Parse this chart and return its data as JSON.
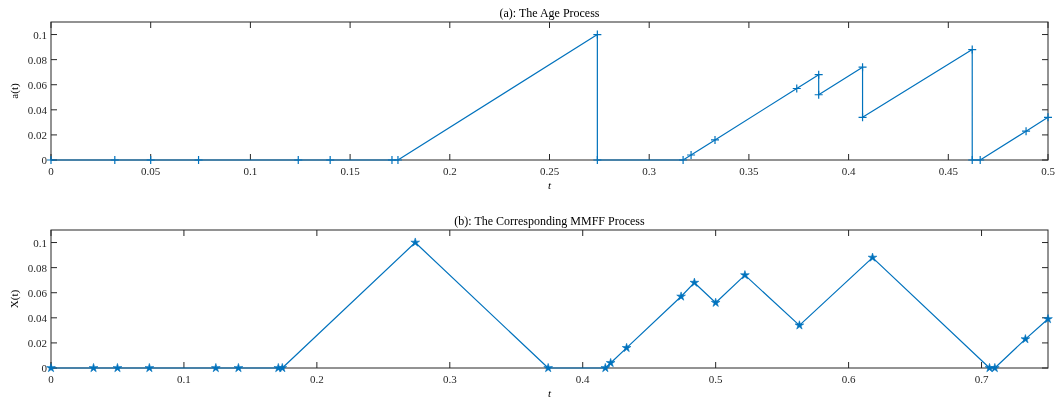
{
  "chart_data": [
    {
      "type": "line",
      "title": "(a): The Age Process",
      "xlabel": "t",
      "ylabel": "a(t)",
      "xlim": [
        0,
        0.5
      ],
      "ylim": [
        0,
        0.11
      ],
      "xticks": [
        0,
        0.05,
        0.1,
        0.15,
        0.2,
        0.25,
        0.3,
        0.35,
        0.4,
        0.45,
        0.5
      ],
      "yticks": [
        0,
        0.02,
        0.04,
        0.06,
        0.08,
        0.1
      ],
      "marker": "cross",
      "line_style": "solid",
      "series": [
        {
          "color": "#0072bd",
          "x": [
            0,
            0.032,
            0.05,
            0.074,
            0.124,
            0.14,
            0.171,
            0.174,
            0.274,
            0.274,
            0.317,
            0.321,
            0.333,
            0.374,
            0.385,
            0.385,
            0.407,
            0.407,
            0.462,
            0.462,
            0.466,
            0.489,
            0.5
          ],
          "values": [
            0,
            0,
            0,
            0,
            0,
            0,
            0,
            0,
            0.1,
            0,
            0,
            0.004,
            0.016,
            0.057,
            0.068,
            0.052,
            0.074,
            0.034,
            0.088,
            0,
            0,
            0.023,
            0.034
          ]
        }
      ]
    },
    {
      "type": "line",
      "title": "(b): The Corresponding MMFF Process",
      "xlabel": "t",
      "ylabel": "X(t)",
      "xlim": [
        0,
        0.75
      ],
      "ylim": [
        0,
        0.11
      ],
      "xticks": [
        0,
        0.1,
        0.2,
        0.3,
        0.4,
        0.5,
        0.6,
        0.7
      ],
      "yticks": [
        0,
        0.02,
        0.04,
        0.06,
        0.08,
        0.1
      ],
      "marker": "star",
      "line_style": "solid",
      "series": [
        {
          "color": "#0072bd",
          "x": [
            0,
            0.032,
            0.05,
            0.074,
            0.124,
            0.141,
            0.171,
            0.174,
            0.274,
            0.374,
            0.417,
            0.421,
            0.433,
            0.474,
            0.484,
            0.5,
            0.522,
            0.563,
            0.618,
            0.706,
            0.71,
            0.733,
            0.75
          ],
          "values": [
            0,
            0,
            0,
            0,
            0,
            0,
            0,
            0,
            0.1,
            0,
            0,
            0.004,
            0.016,
            0.057,
            0.068,
            0.052,
            0.074,
            0.034,
            0.088,
            0,
            0,
            0.023,
            0.039
          ]
        }
      ]
    }
  ]
}
